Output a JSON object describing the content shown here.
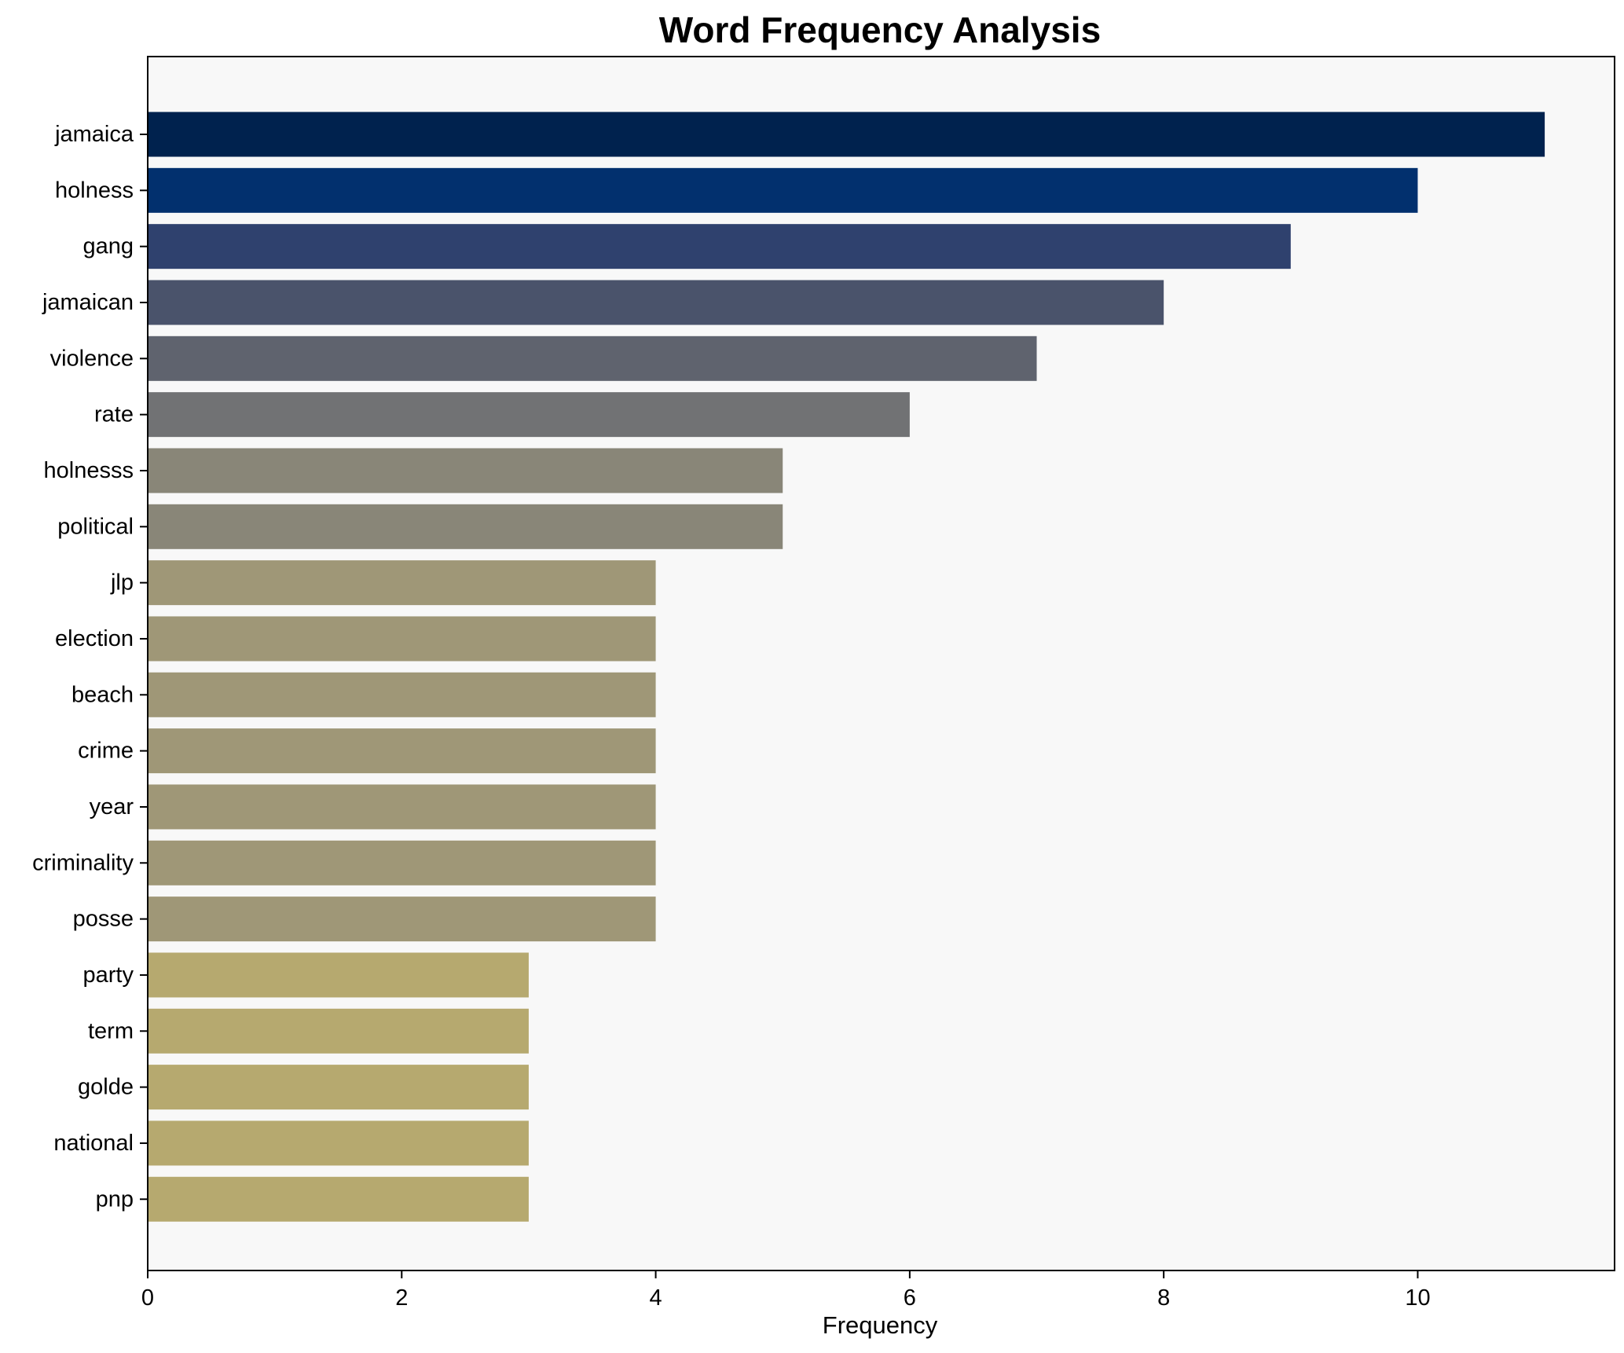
{
  "chart_data": {
    "type": "bar",
    "orientation": "horizontal",
    "title": "Word Frequency Analysis",
    "xlabel": "Frequency",
    "ylabel": "",
    "xlim": [
      0,
      11.55
    ],
    "xticks": [
      0,
      2,
      4,
      6,
      8,
      10
    ],
    "grid": false,
    "legend": "none",
    "background": "#f8f8f8",
    "categories": [
      "jamaica",
      "holness",
      "gang",
      "jamaican",
      "violence",
      "rate",
      "holnesss",
      "political",
      "jlp",
      "election",
      "beach",
      "crime",
      "year",
      "criminality",
      "posse",
      "party",
      "term",
      "golde",
      "national",
      "pnp"
    ],
    "values": [
      11,
      10,
      9,
      8,
      7,
      6,
      5,
      5,
      4,
      4,
      4,
      4,
      4,
      4,
      4,
      3,
      3,
      3,
      3,
      3
    ],
    "colors": [
      "#00224e",
      "#02306e",
      "#2f416e",
      "#4a536b",
      "#5f636e",
      "#717274",
      "#898678",
      "#898678",
      "#9f9777",
      "#9f9777",
      "#9f9777",
      "#9f9777",
      "#9f9777",
      "#9f9777",
      "#9f9777",
      "#b6a96f",
      "#b6a96f",
      "#b6a96f",
      "#b6a96f",
      "#b6a96f"
    ]
  }
}
